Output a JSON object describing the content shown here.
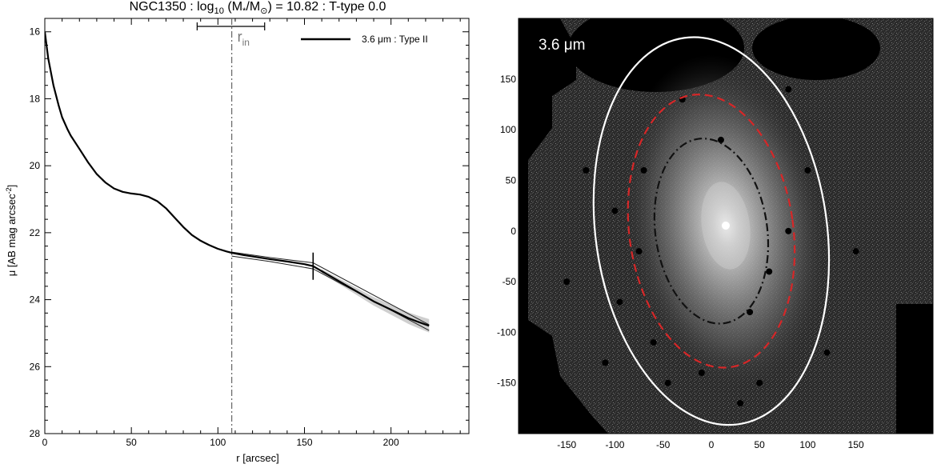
{
  "chart_data": [
    {
      "type": "line",
      "title_parts": {
        "name": "NGC1350",
        "log_prefix": "log",
        "log_sub": "10",
        "mass_open": "(M",
        "mass_star": "*",
        "mass_mid": "/M",
        "mass_sun": "⊙",
        "mass_close": ")",
        "equals": "= 10.82 : T-type 0.0"
      },
      "xlabel": "r [arcsec]",
      "ylabel_main": "μ [AB mag arcsec",
      "ylabel_sup": "-2",
      "ylabel_close": "]",
      "xlim": [
        0,
        245
      ],
      "ylim": [
        28,
        15.6
      ],
      "y_inverted": true,
      "x_ticks": [
        0,
        50,
        100,
        150,
        200
      ],
      "y_ticks": [
        16,
        18,
        20,
        22,
        24,
        26,
        28
      ],
      "legend_label": "3.6 μm : Type II",
      "legend_position": "top-right",
      "r_in_label": "r",
      "r_in_sub": "in",
      "r_in_value": 108,
      "r_in_range": [
        88,
        127
      ],
      "break_radius": 155,
      "series": [
        {
          "name": "3.6 μm : Type II",
          "x": [
            0,
            2,
            5,
            8,
            10,
            13,
            15,
            20,
            25,
            30,
            35,
            40,
            45,
            50,
            55,
            60,
            65,
            70,
            75,
            80,
            85,
            90,
            95,
            100,
            105,
            108,
            115,
            120,
            130,
            140,
            150,
            155,
            160,
            170,
            180,
            190,
            200,
            210,
            215,
            222
          ],
          "y": [
            16.0,
            16.8,
            17.6,
            18.2,
            18.55,
            18.9,
            19.1,
            19.5,
            19.9,
            20.25,
            20.5,
            20.68,
            20.78,
            20.83,
            20.86,
            20.93,
            21.06,
            21.27,
            21.55,
            21.83,
            22.07,
            22.24,
            22.37,
            22.48,
            22.56,
            22.6,
            22.67,
            22.71,
            22.79,
            22.86,
            22.94,
            23.0,
            23.15,
            23.45,
            23.75,
            24.05,
            24.3,
            24.55,
            24.65,
            24.78
          ]
        }
      ],
      "model_fits": [
        {
          "x": [
            108,
            130,
            155,
            222
          ],
          "y": [
            22.58,
            22.74,
            22.9,
            24.75
          ]
        },
        {
          "x": [
            108,
            130,
            155,
            222
          ],
          "y": [
            22.7,
            22.86,
            23.08,
            24.92
          ]
        }
      ]
    },
    {
      "type": "image",
      "image_label": "3.6 μm",
      "x_ticks": [
        -150,
        -100,
        -50,
        0,
        50,
        100,
        150
      ],
      "y_ticks": [
        150,
        100,
        50,
        0,
        -50,
        -100,
        -150
      ],
      "xlim": [
        -200,
        230
      ],
      "ylim": [
        -200,
        210
      ],
      "ellipses": [
        {
          "name": "outer",
          "color": "#ffffff",
          "style": "solid",
          "center": [
            0,
            0
          ],
          "semi_major": 220,
          "semi_minor": 120,
          "angle_deg": -8
        },
        {
          "name": "break",
          "color": "#d62728",
          "style": "dashed",
          "center": [
            0,
            0
          ],
          "semi_major": 155,
          "semi_minor": 85,
          "angle_deg": -8
        },
        {
          "name": "inner",
          "color": "#111111",
          "style": "dashdot",
          "center": [
            0,
            0
          ],
          "semi_major": 105,
          "semi_minor": 58,
          "angle_deg": -8
        }
      ]
    }
  ]
}
